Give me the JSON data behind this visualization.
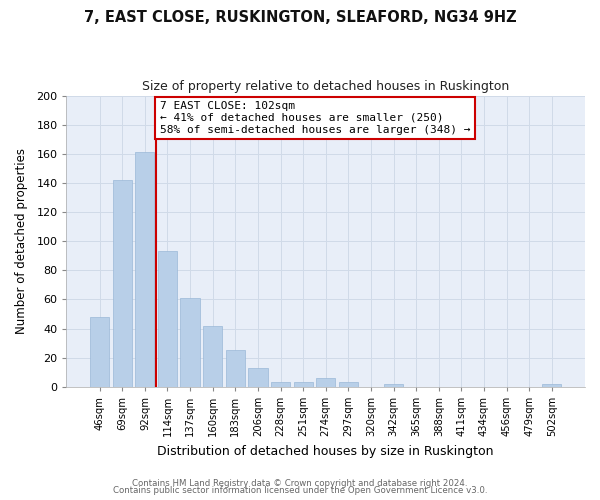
{
  "title": "7, EAST CLOSE, RUSKINGTON, SLEAFORD, NG34 9HZ",
  "subtitle": "Size of property relative to detached houses in Ruskington",
  "xlabel": "Distribution of detached houses by size in Ruskington",
  "ylabel": "Number of detached properties",
  "bar_labels": [
    "46sqm",
    "69sqm",
    "92sqm",
    "114sqm",
    "137sqm",
    "160sqm",
    "183sqm",
    "206sqm",
    "228sqm",
    "251sqm",
    "274sqm",
    "297sqm",
    "320sqm",
    "342sqm",
    "365sqm",
    "388sqm",
    "411sqm",
    "434sqm",
    "456sqm",
    "479sqm",
    "502sqm"
  ],
  "bar_values": [
    48,
    142,
    161,
    93,
    61,
    42,
    25,
    13,
    3,
    3,
    6,
    3,
    0,
    2,
    0,
    0,
    0,
    0,
    0,
    0,
    2
  ],
  "bar_color": "#b8cfe8",
  "bar_edge_color": "#9ab8d8",
  "vline_x_index": 2.5,
  "vline_color": "#cc0000",
  "ylim": [
    0,
    200
  ],
  "yticks": [
    0,
    20,
    40,
    60,
    80,
    100,
    120,
    140,
    160,
    180,
    200
  ],
  "annotation_title": "7 EAST CLOSE: 102sqm",
  "annotation_line1": "← 41% of detached houses are smaller (250)",
  "annotation_line2": "58% of semi-detached houses are larger (348) →",
  "annotation_box_color": "#ffffff",
  "annotation_box_edge": "#cc0000",
  "footer1": "Contains HM Land Registry data © Crown copyright and database right 2024.",
  "footer2": "Contains public sector information licensed under the Open Government Licence v3.0.",
  "grid_color": "#d0dae8",
  "background_color": "#ffffff",
  "plot_bg_color": "#e8eef8"
}
